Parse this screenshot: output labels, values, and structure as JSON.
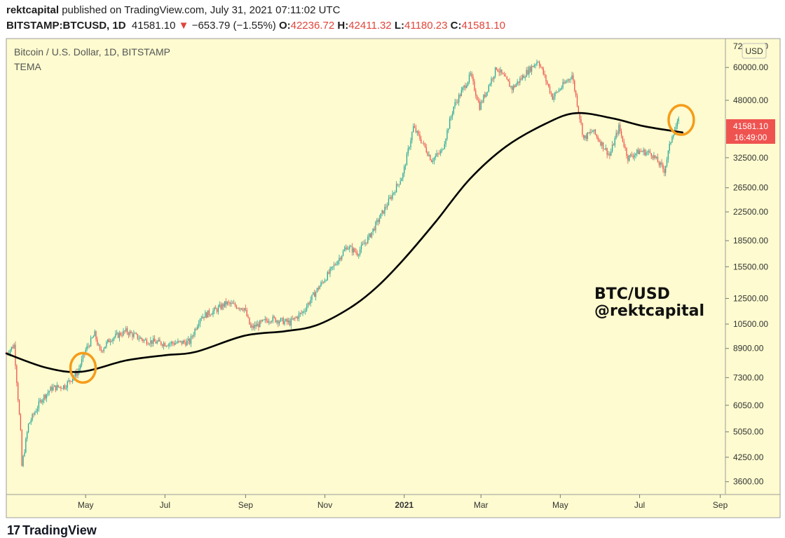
{
  "header": {
    "author": "rektcapital",
    "published_text": " published on TradingView.com, July 31, 2021 07:11:02 UTC",
    "symbol": "BITSTAMP:BTCUSD, 1D",
    "last": "41581.10",
    "change": "−653.79 (−1.55%)",
    "open_label": "O:",
    "open": "42236.72",
    "high_label": "H:",
    "high": "42411.32",
    "low_label": "L:",
    "low": "41180.23",
    "close_label": "C:",
    "close": "41581.10"
  },
  "footer": {
    "brand": "TradingView",
    "brand_mark": "17"
  },
  "colors": {
    "background": "#fdfbcf",
    "up": "#26a69a",
    "down": "#ef5350",
    "tema": "#000000",
    "highlight": "#f59c1a",
    "price_tag": "#ef5350"
  },
  "chart_data": {
    "type": "candlestick",
    "title": "Bitcoin / U.S. Dollar, 1D, BITSTAMP",
    "indicator": "TEMA",
    "annotation_line1": "BTC/USD",
    "annotation_line2": "@rektcapital",
    "currency_label": "USD",
    "y_scale": "log",
    "ylim": [
      3300,
      73000
    ],
    "x_range": [
      "2020-03-01",
      "2021-09-05"
    ],
    "x_tick_labels": [
      {
        "date": "2020-05-01",
        "label": "May"
      },
      {
        "date": "2020-07-01",
        "label": "Jul"
      },
      {
        "date": "2020-09-01",
        "label": "Sep"
      },
      {
        "date": "2020-11-01",
        "label": "Nov"
      },
      {
        "date": "2021-01-01",
        "label": "2021"
      },
      {
        "date": "2021-03-01",
        "label": "Mar"
      },
      {
        "date": "2021-05-01",
        "label": "May"
      },
      {
        "date": "2021-07-01",
        "label": "Jul"
      },
      {
        "date": "2021-09-01",
        "label": "Sep"
      }
    ],
    "y_tick_labels": [
      60000,
      48000,
      32500,
      26500,
      22500,
      18500,
      15500,
      12500,
      10500,
      8900,
      7300,
      6050,
      5050,
      4250,
      3600
    ],
    "y_top_partial_label": "72000.00",
    "last_price_label": "41581.10",
    "countdown_label": "16:49:00",
    "price_path": [
      [
        "2020-03-01",
        8600
      ],
      [
        "2020-03-07",
        9100
      ],
      [
        "2020-03-12",
        5000
      ],
      [
        "2020-03-13",
        4000
      ],
      [
        "2020-03-18",
        5300
      ],
      [
        "2020-03-28",
        6300
      ],
      [
        "2020-04-05",
        6800
      ],
      [
        "2020-04-15",
        6900
      ],
      [
        "2020-04-25",
        7600
      ],
      [
        "2020-05-01",
        8800
      ],
      [
        "2020-05-08",
        9800
      ],
      [
        "2020-05-12",
        8700
      ],
      [
        "2020-05-20",
        9500
      ],
      [
        "2020-06-01",
        10000
      ],
      [
        "2020-06-15",
        9400
      ],
      [
        "2020-07-01",
        9200
      ],
      [
        "2020-07-20",
        9300
      ],
      [
        "2020-07-28",
        11000
      ],
      [
        "2020-08-10",
        11600
      ],
      [
        "2020-08-17",
        12100
      ],
      [
        "2020-08-31",
        11700
      ],
      [
        "2020-09-05",
        10200
      ],
      [
        "2020-09-20",
        10900
      ],
      [
        "2020-10-05",
        10600
      ],
      [
        "2020-10-15",
        11400
      ],
      [
        "2020-10-25",
        13100
      ],
      [
        "2020-11-05",
        15000
      ],
      [
        "2020-11-18",
        17800
      ],
      [
        "2020-11-26",
        17000
      ],
      [
        "2020-12-05",
        19000
      ],
      [
        "2020-12-17",
        23000
      ],
      [
        "2020-12-31",
        29000
      ],
      [
        "2021-01-08",
        40000
      ],
      [
        "2021-01-15",
        36000
      ],
      [
        "2021-01-22",
        32000
      ],
      [
        "2021-01-30",
        34000
      ],
      [
        "2021-02-08",
        46000
      ],
      [
        "2021-02-21",
        57000
      ],
      [
        "2021-02-28",
        46000
      ],
      [
        "2021-03-13",
        60000
      ],
      [
        "2021-03-25",
        52000
      ],
      [
        "2021-04-05",
        58000
      ],
      [
        "2021-04-14",
        63000
      ],
      [
        "2021-04-25",
        49000
      ],
      [
        "2021-05-10",
        57000
      ],
      [
        "2021-05-19",
        37000
      ],
      [
        "2021-05-26",
        39000
      ],
      [
        "2021-06-08",
        33000
      ],
      [
        "2021-06-15",
        40000
      ],
      [
        "2021-06-22",
        32500
      ],
      [
        "2021-07-01",
        34000
      ],
      [
        "2021-07-10",
        33500
      ],
      [
        "2021-07-20",
        29800
      ],
      [
        "2021-07-26",
        38000
      ],
      [
        "2021-07-31",
        41581
      ]
    ],
    "tema_path": [
      [
        "2020-03-01",
        8600
      ],
      [
        "2020-04-01",
        7800
      ],
      [
        "2020-04-28",
        7600
      ],
      [
        "2020-06-01",
        8200
      ],
      [
        "2020-07-01",
        8500
      ],
      [
        "2020-07-25",
        8700
      ],
      [
        "2020-08-31",
        9700
      ],
      [
        "2020-10-01",
        10000
      ],
      [
        "2020-10-25",
        10400
      ],
      [
        "2020-11-20",
        11700
      ],
      [
        "2020-12-10",
        13400
      ],
      [
        "2020-12-31",
        16200
      ],
      [
        "2021-01-25",
        21000
      ],
      [
        "2021-02-20",
        28000
      ],
      [
        "2021-03-20",
        35000
      ],
      [
        "2021-04-20",
        41000
      ],
      [
        "2021-05-13",
        44000
      ],
      [
        "2021-06-10",
        42500
      ],
      [
        "2021-07-05",
        40200
      ],
      [
        "2021-08-03",
        38600
      ]
    ],
    "highlights": [
      {
        "date": "2020-04-29",
        "value": 7800
      },
      {
        "date": "2021-08-02",
        "value": 42000
      }
    ]
  }
}
